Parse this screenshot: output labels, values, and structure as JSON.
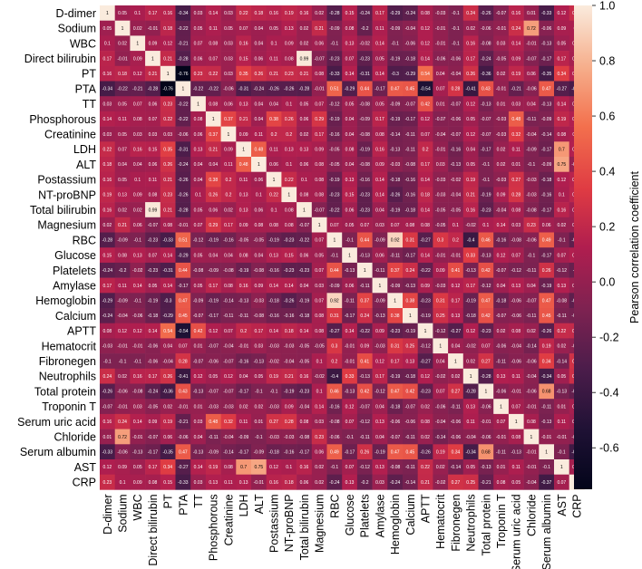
{
  "chart_data": {
    "type": "heatmap",
    "title": "",
    "colorbar_label": "Pearson correlation coefficient",
    "colorbar_ticks": [
      "1.0",
      "0.8",
      "0.6",
      "0.4",
      "0.2",
      "0.0",
      "-0.2",
      "-0.4",
      "-0.6"
    ],
    "vmin": -0.75,
    "vmax": 1.0,
    "variables": [
      "D-dimer",
      "Sodium",
      "WBC",
      "Direct bilirubin",
      "PT",
      "PTA",
      "TT",
      "Phosphorous",
      "Creatinine",
      "LDH",
      "ALT",
      "Postassium",
      "NT-proBNP",
      "Total bilirubin",
      "Magnesium",
      "RBC",
      "Glucose",
      "Platelets",
      "Amylase",
      "Hemoglobin",
      "Calcium",
      "APTT",
      "Hematocrit",
      "Fibronegen",
      "Neutrophils",
      "Total protein",
      "Troponin T",
      "Serum uric acid",
      "Chloride",
      "Serum albumin",
      "AST",
      "CRP"
    ],
    "rows": [
      {
        "values": [
          1,
          0.05,
          0.1,
          0.17,
          0.16,
          -0.34,
          0.03,
          0.14,
          0.03,
          0.22,
          0.18,
          0.16,
          0.19,
          0.16,
          0.02,
          -0.28,
          0.15,
          -0.24,
          0.17,
          -0.29,
          -0.24,
          0.08,
          -0.03,
          -0.1,
          0.24,
          -0.26,
          -0.07,
          0.16,
          0.01,
          -0.33,
          0.12,
          0.23
        ]
      },
      {
        "values": [
          0.05,
          1,
          0.02,
          -0.01,
          0.18,
          -0.22,
          0.05,
          0.11,
          0.05,
          0.07,
          0.04,
          0.05,
          0.13,
          0.02,
          0.21,
          -0.09,
          0.08,
          -0.2,
          0.11,
          -0.09,
          -0.04,
          0.12,
          -0.01,
          -0.1,
          0.02,
          -0.06,
          -0.01,
          0.24,
          0.72,
          -0.06,
          0.09,
          0.1
        ]
      },
      {
        "values": [
          0.1,
          0.02,
          1,
          0.09,
          0.12,
          -0.21,
          0.07,
          0.08,
          0.03,
          0.16,
          0.04,
          0.1,
          0.09,
          0.02,
          0.06,
          -0.1,
          0.13,
          -0.02,
          0.14,
          -0.1,
          -0.06,
          0.12,
          -0.01,
          -0.1,
          0.16,
          -0.08,
          0.03,
          0.14,
          -0.01,
          -0.13,
          0.05,
          0.09
        ]
      },
      {
        "values": [
          0.17,
          -0.01,
          0.09,
          1,
          0.21,
          -0.28,
          0.06,
          0.07,
          0.03,
          0.15,
          0.06,
          0.11,
          0.08,
          0.99,
          -0.07,
          -0.23,
          0.07,
          -0.23,
          0.05,
          -0.19,
          -0.18,
          0.14,
          -0.06,
          -0.06,
          0.17,
          -0.24,
          -0.05,
          0.09,
          -0.07,
          -0.17,
          0.17,
          0.08
        ]
      },
      {
        "values": [
          0.16,
          0.18,
          0.12,
          0.21,
          1,
          -0.76,
          0.23,
          0.22,
          0.03,
          0.35,
          0.26,
          0.21,
          0.23,
          0.21,
          0.08,
          -0.33,
          0.14,
          -0.31,
          0.14,
          -0.3,
          -0.29,
          0.54,
          0.04,
          -0.04,
          0.26,
          -0.36,
          0.02,
          0.19,
          0.06,
          -0.35,
          0.34,
          0.15
        ]
      },
      {
        "values": [
          -0.34,
          -0.22,
          -0.21,
          -0.28,
          -0.76,
          1,
          -0.22,
          -0.22,
          -0.06,
          -0.31,
          -0.24,
          -0.26,
          -0.26,
          -0.28,
          -0.01,
          0.51,
          -0.29,
          0.44,
          -0.17,
          0.47,
          0.45,
          -0.54,
          0.07,
          0.28,
          -0.41,
          0.43,
          -0.01,
          -0.21,
          -0.06,
          0.47,
          -0.27,
          -0.33
        ]
      },
      {
        "values": [
          0.03,
          0.05,
          0.07,
          0.06,
          0.23,
          -0.22,
          1,
          0.08,
          0.06,
          0.13,
          0.04,
          0.04,
          0.1,
          0.05,
          0.07,
          -0.12,
          0.05,
          -0.08,
          0.05,
          -0.09,
          -0.07,
          0.42,
          0.01,
          -0.07,
          0.12,
          -0.13,
          0.01,
          0.03,
          0.04,
          -0.13,
          0.14,
          0.03
        ]
      },
      {
        "values": [
          0.14,
          0.11,
          0.08,
          0.07,
          0.22,
          -0.22,
          0.08,
          1,
          0.37,
          0.21,
          0.04,
          0.38,
          0.26,
          0.06,
          0.29,
          -0.19,
          0.04,
          -0.09,
          0.17,
          -0.19,
          -0.17,
          0.12,
          -0.07,
          -0.06,
          0.05,
          -0.07,
          -0.03,
          0.48,
          -0.11,
          -0.09,
          0.19,
          0.13
        ]
      },
      {
        "values": [
          0.03,
          0.05,
          0.03,
          0.03,
          0.03,
          -0.06,
          0.06,
          0.37,
          1,
          0.09,
          0.11,
          0.2,
          0.2,
          0.02,
          0.17,
          -0.16,
          0.04,
          -0.08,
          0.08,
          -0.14,
          -0.11,
          0.07,
          -0.04,
          -0.07,
          0.12,
          -0.07,
          -0.03,
          0.32,
          -0.04,
          -0.14,
          0.08,
          0.11
        ]
      },
      {
        "values": [
          0.22,
          0.07,
          0.16,
          0.15,
          0.35,
          -0.31,
          0.13,
          0.21,
          0.09,
          1,
          0.48,
          0.11,
          0.13,
          0.13,
          0.09,
          -0.05,
          0.08,
          -0.19,
          0.16,
          -0.13,
          -0.11,
          0.2,
          -0.01,
          -0.16,
          0.04,
          -0.17,
          0.02,
          0.11,
          -0.09,
          -0.17,
          0.7,
          0.13
        ]
      },
      {
        "values": [
          0.18,
          0.04,
          0.04,
          0.06,
          0.26,
          -0.24,
          0.04,
          0.04,
          0.11,
          0.48,
          1,
          0.06,
          0.1,
          0.06,
          0.08,
          -0.05,
          0.04,
          -0.08,
          0.09,
          -0.03,
          -0.08,
          0.17,
          0.03,
          -0.13,
          0.05,
          -0.1,
          0.02,
          0.01,
          -0.1,
          -0.09,
          0.75,
          -0.01
        ]
      },
      {
        "values": [
          0.16,
          0.05,
          0.1,
          0.11,
          0.21,
          -0.26,
          0.04,
          0.38,
          0.2,
          0.11,
          0.06,
          1,
          0.22,
          0.1,
          0.08,
          -0.19,
          0.13,
          -0.16,
          0.14,
          -0.18,
          -0.16,
          0.14,
          -0.03,
          -0.02,
          0.19,
          -0.1,
          -0.03,
          0.27,
          -0.03,
          -0.18,
          0.12,
          0.16
        ]
      },
      {
        "values": [
          0.19,
          0.13,
          0.09,
          0.08,
          0.23,
          -0.26,
          0.1,
          0.26,
          0.2,
          0.13,
          0.1,
          0.22,
          1,
          0.08,
          0.08,
          -0.23,
          0.15,
          -0.23,
          0.14,
          -0.26,
          -0.16,
          0.18,
          -0.03,
          -0.04,
          0.21,
          -0.19,
          0.09,
          0.28,
          -0.03,
          -0.16,
          0.1,
          0.18
        ]
      },
      {
        "values": [
          0.16,
          0.02,
          0.02,
          0.99,
          0.21,
          -0.28,
          0.05,
          0.06,
          0.02,
          0.13,
          0.06,
          0.1,
          0.08,
          1,
          -0.07,
          -0.22,
          0.06,
          -0.23,
          0.04,
          -0.19,
          -0.18,
          0.14,
          -0.05,
          -0.05,
          0.16,
          -0.23,
          -0.04,
          0.08,
          -0.08,
          -0.17,
          0.16,
          0.06
        ]
      },
      {
        "values": [
          0.02,
          0.21,
          0.06,
          -0.07,
          0.08,
          -0.01,
          0.07,
          0.29,
          0.17,
          0.09,
          0.08,
          0.08,
          0.08,
          -0.07,
          1,
          0.07,
          0.05,
          0.07,
          0.03,
          0.07,
          0.08,
          0.08,
          -0.05,
          0.1,
          -0.02,
          0.1,
          0.14,
          0.03,
          0.23,
          0.06,
          0.02,
          0.02
        ]
      },
      {
        "values": [
          -0.28,
          -0.09,
          -0.1,
          -0.23,
          -0.33,
          0.51,
          -0.12,
          -0.19,
          -0.16,
          -0.05,
          -0.05,
          -0.19,
          -0.23,
          -0.22,
          0.07,
          1,
          -0.1,
          0.44,
          -0.09,
          0.92,
          0.31,
          -0.27,
          0.3,
          0.2,
          -0.4,
          0.46,
          -0.16,
          -0.08,
          -0.06,
          0.49,
          -0.1,
          -0.24
        ]
      },
      {
        "values": [
          0.15,
          0.08,
          0.13,
          0.07,
          0.14,
          -0.29,
          0.05,
          0.04,
          0.04,
          0.08,
          0.04,
          0.13,
          0.15,
          0.06,
          0.05,
          -0.1,
          1,
          -0.13,
          0.06,
          -0.11,
          -0.17,
          0.14,
          -0.01,
          -0.01,
          0.33,
          -0.13,
          0.12,
          0.07,
          -0.1,
          -0.17,
          0.07,
          0.13
        ]
      },
      {
        "values": [
          -0.24,
          -0.2,
          -0.02,
          -0.23,
          -0.31,
          0.44,
          -0.08,
          -0.09,
          -0.08,
          -0.19,
          -0.08,
          -0.16,
          -0.23,
          -0.23,
          0.07,
          0.44,
          -0.13,
          1,
          -0.11,
          0.37,
          0.24,
          -0.22,
          0.09,
          0.41,
          -0.13,
          0.42,
          -0.07,
          -0.12,
          -0.11,
          0.26,
          -0.12,
          -0.2
        ]
      },
      {
        "values": [
          0.17,
          0.11,
          0.14,
          0.05,
          0.14,
          -0.17,
          0.05,
          0.17,
          0.08,
          0.16,
          0.09,
          0.14,
          0.14,
          0.04,
          0.03,
          -0.09,
          0.06,
          -0.11,
          1,
          -0.09,
          -0.13,
          0.09,
          -0.03,
          0.12,
          0.17,
          -0.12,
          0.04,
          0.13,
          0.04,
          -0.19,
          0.13,
          0.03
        ]
      },
      {
        "values": [
          -0.29,
          -0.09,
          -0.1,
          -0.19,
          -0.3,
          0.47,
          -0.09,
          -0.19,
          -0.14,
          -0.13,
          -0.03,
          -0.18,
          -0.26,
          -0.19,
          0.07,
          0.92,
          -0.11,
          0.37,
          -0.09,
          1,
          0.38,
          -0.23,
          0.31,
          0.17,
          -0.19,
          0.47,
          -0.18,
          -0.06,
          -0.07,
          0.47,
          -0.08,
          -0.24
        ]
      },
      {
        "values": [
          -0.24,
          -0.04,
          -0.06,
          -0.18,
          -0.29,
          0.45,
          -0.07,
          -0.17,
          -0.11,
          -0.11,
          -0.08,
          -0.16,
          -0.16,
          -0.18,
          0.08,
          0.31,
          -0.17,
          0.24,
          -0.13,
          0.38,
          1,
          -0.19,
          0.25,
          0.13,
          -0.18,
          0.42,
          -0.07,
          -0.06,
          -0.11,
          0.45,
          -0.11,
          -0.14
        ]
      },
      {
        "values": [
          0.08,
          0.12,
          0.12,
          0.14,
          0.54,
          -0.54,
          0.42,
          0.12,
          0.07,
          0.2,
          0.17,
          0.14,
          0.18,
          0.14,
          0.08,
          -0.27,
          0.14,
          -0.22,
          0.09,
          -0.23,
          -0.19,
          1,
          -0.12,
          -0.27,
          0.12,
          -0.23,
          0.02,
          0.08,
          0.02,
          -0.26,
          0.22,
          0.21
        ]
      },
      {
        "values": [
          -0.03,
          -0.01,
          -0.01,
          -0.06,
          0.04,
          0.07,
          0.01,
          -0.07,
          -0.04,
          -0.01,
          0.03,
          -0.03,
          -0.03,
          -0.05,
          -0.05,
          0.3,
          -0.01,
          0.09,
          -0.03,
          0.31,
          0.25,
          -0.12,
          1,
          0.04,
          -0.02,
          0.07,
          -0.06,
          -0.04,
          -0.14,
          0.19,
          0.02,
          -0.02
        ]
      },
      {
        "values": [
          -0.1,
          -0.1,
          -0.1,
          -0.06,
          -0.04,
          0.28,
          -0.07,
          -0.06,
          -0.07,
          -0.16,
          -0.13,
          -0.02,
          -0.04,
          -0.05,
          0.1,
          0.2,
          -0.01,
          0.41,
          0.12,
          0.17,
          0.13,
          -0.27,
          0.04,
          1,
          0.02,
          0.27,
          -0.11,
          -0.06,
          -0.06,
          0.34,
          -0.14,
          0.27
        ]
      },
      {
        "values": [
          0.24,
          0.02,
          0.16,
          0.17,
          0.26,
          -0.41,
          0.12,
          0.05,
          0.12,
          0.04,
          0.05,
          0.19,
          0.21,
          0.16,
          -0.02,
          -0.4,
          0.33,
          -0.13,
          0.17,
          -0.19,
          -0.18,
          0.12,
          -0.02,
          0.02,
          1,
          -0.28,
          0.13,
          0.11,
          -0.04,
          -0.34,
          0.05,
          0.25
        ]
      },
      {
        "values": [
          -0.26,
          -0.06,
          -0.08,
          -0.24,
          -0.36,
          0.43,
          -0.13,
          -0.07,
          -0.07,
          -0.17,
          -0.1,
          -0.1,
          -0.19,
          -0.23,
          0.1,
          0.46,
          -0.13,
          0.42,
          -0.12,
          0.47,
          0.42,
          -0.23,
          0.07,
          0.27,
          -0.28,
          1,
          -0.06,
          -0.01,
          -0.06,
          0.68,
          -0.13,
          -0.21
        ]
      },
      {
        "values": [
          -0.07,
          -0.01,
          0.03,
          -0.05,
          0.02,
          -0.01,
          0.01,
          -0.03,
          -0.03,
          0.02,
          0.02,
          -0.03,
          0.09,
          -0.04,
          0.14,
          -0.16,
          0.12,
          -0.07,
          0.04,
          -0.18,
          -0.07,
          0.02,
          -0.06,
          -0.11,
          0.13,
          -0.06,
          1,
          0.07,
          -0.01,
          -0.11,
          0.01,
          0.08
        ]
      },
      {
        "values": [
          0.16,
          0.24,
          0.14,
          0.09,
          0.19,
          -0.21,
          0.03,
          0.48,
          0.32,
          0.11,
          0.01,
          0.27,
          0.28,
          0.08,
          0.03,
          -0.08,
          0.07,
          -0.12,
          0.13,
          -0.06,
          -0.06,
          0.08,
          -0.04,
          -0.06,
          0.11,
          -0.01,
          0.07,
          1,
          0.08,
          -0.13,
          0.11,
          0.05
        ]
      },
      {
        "values": [
          0.01,
          0.72,
          -0.01,
          -0.07,
          0.06,
          -0.06,
          0.04,
          -0.11,
          -0.04,
          -0.09,
          -0.1,
          -0.03,
          -0.03,
          -0.08,
          0.23,
          -0.06,
          -0.1,
          -0.11,
          0.04,
          -0.07,
          -0.11,
          0.02,
          -0.14,
          -0.06,
          -0.04,
          -0.06,
          -0.01,
          0.08,
          1,
          -0.01,
          -0.01,
          -0.04
        ]
      },
      {
        "values": [
          -0.33,
          -0.06,
          -0.13,
          -0.17,
          -0.35,
          0.47,
          -0.13,
          -0.09,
          -0.14,
          -0.17,
          -0.09,
          -0.18,
          -0.16,
          -0.17,
          0.06,
          0.49,
          -0.17,
          0.26,
          -0.19,
          0.47,
          0.45,
          -0.26,
          0.19,
          0.34,
          -0.34,
          0.68,
          -0.11,
          -0.13,
          -0.01,
          1,
          -0.1,
          -0.37
        ]
      },
      {
        "values": [
          0.12,
          0.09,
          0.05,
          0.17,
          0.34,
          -0.27,
          0.14,
          0.19,
          0.08,
          0.7,
          0.75,
          0.12,
          0.1,
          0.16,
          0.02,
          -0.1,
          0.07,
          -0.12,
          0.13,
          -0.08,
          -0.11,
          0.22,
          0.02,
          -0.14,
          0.05,
          -0.13,
          0.01,
          0.11,
          -0.01,
          -0.1,
          1,
          0.07
        ]
      },
      {
        "values": [
          0.23,
          0.1,
          0.09,
          0.08,
          0.15,
          -0.33,
          0.03,
          0.13,
          0.11,
          0.13,
          -0.01,
          0.16,
          0.18,
          0.06,
          0.02,
          -0.24,
          0.13,
          -0.2,
          0.03,
          -0.24,
          -0.14,
          0.21,
          -0.02,
          0.27,
          0.25,
          -0.21,
          0.08,
          0.05,
          -0.04,
          -0.37,
          0.07,
          1
        ]
      }
    ]
  }
}
